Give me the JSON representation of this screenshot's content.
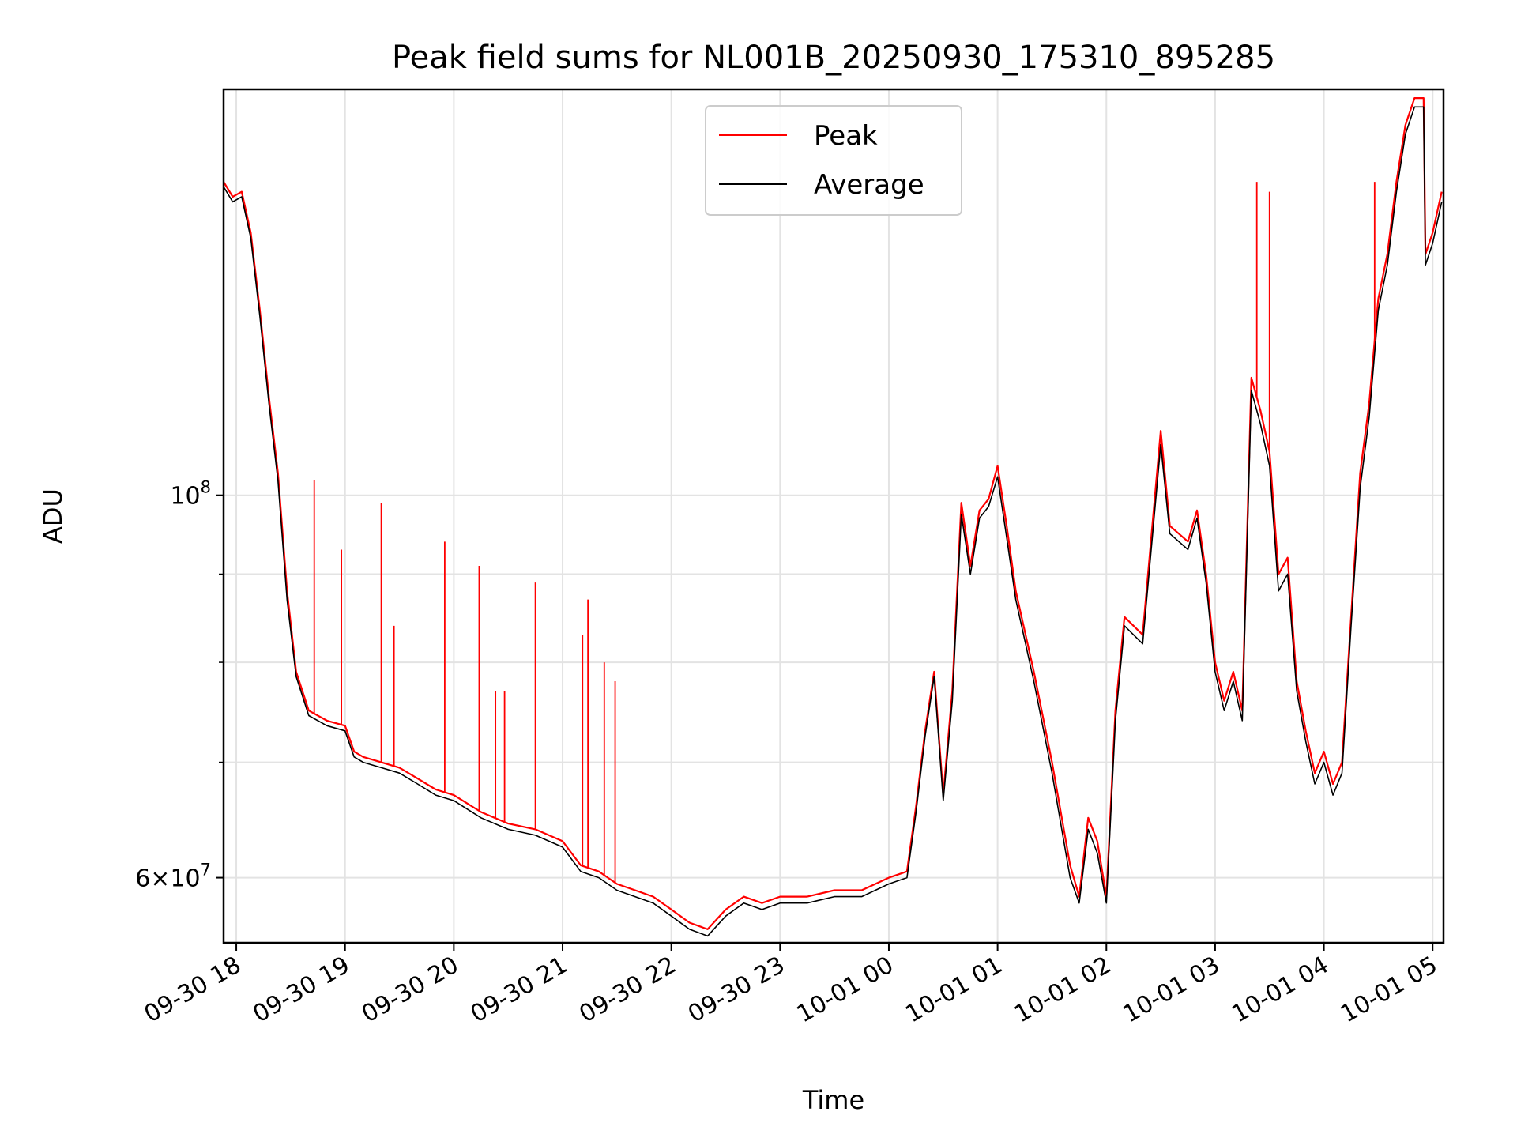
{
  "chart_data": {
    "type": "line",
    "title": "Peak field sums for NL001B_20250930_175310_895285",
    "xlabel": "Time",
    "ylabel": "ADU",
    "y_scale": "log",
    "ylim": [
      55000000,
      172000000
    ],
    "xlim": [
      "2025-09-30 17:53",
      "2025-10-01 05:06"
    ],
    "grid": true,
    "legend_position": "top-center",
    "x_ticks": [
      "09-30 18",
      "09-30 19",
      "09-30 20",
      "09-30 21",
      "09-30 22",
      "09-30 23",
      "10-01 00",
      "10-01 01",
      "10-01 02",
      "10-01 03",
      "10-01 04",
      "10-01 05"
    ],
    "x_tick_times": [
      "2025-09-30 18:00",
      "2025-09-30 19:00",
      "2025-09-30 20:00",
      "2025-09-30 21:00",
      "2025-09-30 22:00",
      "2025-09-30 23:00",
      "2025-10-01 00:00",
      "2025-10-01 01:00",
      "2025-10-01 02:00",
      "2025-10-01 03:00",
      "2025-10-01 04:00",
      "2025-10-01 05:00"
    ],
    "y_ticks": [
      {
        "base": "10",
        "exp": "8",
        "value": 100000000
      },
      {
        "mant": "6",
        "base": "10",
        "exp": "7",
        "value": 60000000
      }
    ],
    "y_minor_ticks": [
      70000000,
      80000000,
      90000000
    ],
    "series": [
      {
        "name": "Peak",
        "color": "#ff0000",
        "x": [
          "2025-09-30 17:53",
          "2025-09-30 17:58",
          "2025-09-30 18:03",
          "2025-09-30 18:08",
          "2025-09-30 18:13",
          "2025-09-30 18:18",
          "2025-09-30 18:23",
          "2025-09-30 18:28",
          "2025-09-30 18:33",
          "2025-09-30 18:40",
          "2025-09-30 18:50",
          "2025-09-30 19:00",
          "2025-09-30 19:05",
          "2025-09-30 19:10",
          "2025-09-30 19:20",
          "2025-09-30 19:30",
          "2025-09-30 19:40",
          "2025-09-30 19:50",
          "2025-09-30 20:00",
          "2025-09-30 20:15",
          "2025-09-30 20:30",
          "2025-09-30 20:45",
          "2025-09-30 21:00",
          "2025-09-30 21:10",
          "2025-09-30 21:20",
          "2025-09-30 21:30",
          "2025-09-30 21:40",
          "2025-09-30 21:50",
          "2025-09-30 22:00",
          "2025-09-30 22:10",
          "2025-09-30 22:20",
          "2025-09-30 22:30",
          "2025-09-30 22:40",
          "2025-09-30 22:50",
          "2025-09-30 23:00",
          "2025-09-30 23:15",
          "2025-09-30 23:30",
          "2025-09-30 23:45",
          "2025-10-01 00:00",
          "2025-10-01 00:10",
          "2025-10-01 00:15",
          "2025-10-01 00:20",
          "2025-10-01 00:25",
          "2025-10-01 00:30",
          "2025-10-01 00:35",
          "2025-10-01 00:40",
          "2025-10-01 00:45",
          "2025-10-01 00:50",
          "2025-10-01 00:55",
          "2025-10-01 01:00",
          "2025-10-01 01:05",
          "2025-10-01 01:10",
          "2025-10-01 01:20",
          "2025-10-01 01:30",
          "2025-10-01 01:40",
          "2025-10-01 01:45",
          "2025-10-01 01:50",
          "2025-10-01 01:55",
          "2025-10-01 02:00",
          "2025-10-01 02:05",
          "2025-10-01 02:10",
          "2025-10-01 02:20",
          "2025-10-01 02:30",
          "2025-10-01 02:35",
          "2025-10-01 02:45",
          "2025-10-01 02:50",
          "2025-10-01 02:55",
          "2025-10-01 03:00",
          "2025-10-01 03:05",
          "2025-10-01 03:10",
          "2025-10-01 03:15",
          "2025-10-01 03:20",
          "2025-10-01 03:25",
          "2025-10-01 03:30",
          "2025-10-01 03:35",
          "2025-10-01 03:40",
          "2025-10-01 03:45",
          "2025-10-01 03:50",
          "2025-10-01 03:55",
          "2025-10-01 04:00",
          "2025-10-01 04:05",
          "2025-10-01 04:10",
          "2025-10-01 04:15",
          "2025-10-01 04:20",
          "2025-10-01 04:25",
          "2025-10-01 04:30",
          "2025-10-01 04:35",
          "2025-10-01 04:40",
          "2025-10-01 04:45",
          "2025-10-01 04:50",
          "2025-10-01 04:55",
          "2025-10-01 04:56",
          "2025-10-01 05:00",
          "2025-10-01 05:05"
        ],
        "y": [
          152000000,
          149000000,
          150000000,
          142000000,
          128000000,
          114000000,
          103000000,
          88000000,
          79000000,
          75000000,
          74000000,
          73500000,
          71000000,
          70500000,
          70000000,
          69500000,
          68500000,
          67500000,
          67000000,
          65500000,
          64500000,
          64000000,
          63000000,
          61000000,
          60500000,
          59500000,
          59000000,
          58500000,
          57500000,
          56500000,
          56000000,
          57500000,
          58500000,
          58000000,
          58500000,
          58500000,
          59000000,
          59000000,
          60000000,
          60500000,
          66000000,
          73000000,
          79000000,
          67000000,
          77000000,
          99000000,
          91000000,
          98000000,
          99500000,
          104000000,
          96000000,
          88000000,
          79000000,
          70000000,
          61000000,
          58500000,
          65000000,
          63000000,
          58500000,
          75000000,
          85000000,
          83000000,
          109000000,
          96000000,
          94000000,
          98000000,
          90000000,
          80000000,
          76000000,
          79000000,
          75000000,
          117000000,
          112000000,
          106000000,
          90000000,
          92000000,
          78000000,
          73000000,
          69000000,
          71000000,
          68000000,
          70000000,
          85000000,
          103000000,
          113000000,
          130000000,
          138000000,
          152000000,
          164000000,
          170000000,
          170000000,
          138000000,
          142000000,
          150000000
        ]
      },
      {
        "name": "Average",
        "color": "#000000",
        "x": [
          "2025-09-30 17:53",
          "2025-09-30 17:58",
          "2025-09-30 18:03",
          "2025-09-30 18:08",
          "2025-09-30 18:13",
          "2025-09-30 18:18",
          "2025-09-30 18:23",
          "2025-09-30 18:28",
          "2025-09-30 18:33",
          "2025-09-30 18:40",
          "2025-09-30 18:50",
          "2025-09-30 19:00",
          "2025-09-30 19:05",
          "2025-09-30 19:10",
          "2025-09-30 19:20",
          "2025-09-30 19:30",
          "2025-09-30 19:40",
          "2025-09-30 19:50",
          "2025-09-30 20:00",
          "2025-09-30 20:15",
          "2025-09-30 20:30",
          "2025-09-30 20:45",
          "2025-09-30 21:00",
          "2025-09-30 21:10",
          "2025-09-30 21:20",
          "2025-09-30 21:30",
          "2025-09-30 21:40",
          "2025-09-30 21:50",
          "2025-09-30 22:00",
          "2025-09-30 22:10",
          "2025-09-30 22:20",
          "2025-09-30 22:30",
          "2025-09-30 22:40",
          "2025-09-30 22:50",
          "2025-09-30 23:00",
          "2025-09-30 23:15",
          "2025-09-30 23:30",
          "2025-09-30 23:45",
          "2025-10-01 00:00",
          "2025-10-01 00:10",
          "2025-10-01 00:15",
          "2025-10-01 00:20",
          "2025-10-01 00:25",
          "2025-10-01 00:30",
          "2025-10-01 00:35",
          "2025-10-01 00:40",
          "2025-10-01 00:45",
          "2025-10-01 00:50",
          "2025-10-01 00:55",
          "2025-10-01 01:00",
          "2025-10-01 01:05",
          "2025-10-01 01:10",
          "2025-10-01 01:20",
          "2025-10-01 01:30",
          "2025-10-01 01:40",
          "2025-10-01 01:45",
          "2025-10-01 01:50",
          "2025-10-01 01:55",
          "2025-10-01 02:00",
          "2025-10-01 02:05",
          "2025-10-01 02:10",
          "2025-10-01 02:20",
          "2025-10-01 02:30",
          "2025-10-01 02:35",
          "2025-10-01 02:45",
          "2025-10-01 02:50",
          "2025-10-01 02:55",
          "2025-10-01 03:00",
          "2025-10-01 03:05",
          "2025-10-01 03:10",
          "2025-10-01 03:15",
          "2025-10-01 03:20",
          "2025-10-01 03:25",
          "2025-10-01 03:30",
          "2025-10-01 03:35",
          "2025-10-01 03:40",
          "2025-10-01 03:45",
          "2025-10-01 03:50",
          "2025-10-01 03:55",
          "2025-10-01 04:00",
          "2025-10-01 04:05",
          "2025-10-01 04:10",
          "2025-10-01 04:15",
          "2025-10-01 04:20",
          "2025-10-01 04:25",
          "2025-10-01 04:30",
          "2025-10-01 04:35",
          "2025-10-01 04:40",
          "2025-10-01 04:45",
          "2025-10-01 04:50",
          "2025-10-01 04:55",
          "2025-10-01 04:56",
          "2025-10-01 05:00",
          "2025-10-01 05:05"
        ],
        "y": [
          151000000,
          148000000,
          149000000,
          141000000,
          127000000,
          113000000,
          102000000,
          87000000,
          78500000,
          74500000,
          73500000,
          73000000,
          70500000,
          70000000,
          69500000,
          69000000,
          68000000,
          67000000,
          66500000,
          65000000,
          64000000,
          63500000,
          62500000,
          60500000,
          60000000,
          59000000,
          58500000,
          58000000,
          57000000,
          56000000,
          55500000,
          57000000,
          58000000,
          57500000,
          58000000,
          58000000,
          58500000,
          58500000,
          59500000,
          60000000,
          65500000,
          72500000,
          78500000,
          66500000,
          76000000,
          97500000,
          90000000,
          97000000,
          98500000,
          102500000,
          94500000,
          87000000,
          78000000,
          69000000,
          60000000,
          58000000,
          64000000,
          62000000,
          58000000,
          74000000,
          84000000,
          82000000,
          107000000,
          95000000,
          93000000,
          97000000,
          89000000,
          79000000,
          75000000,
          78000000,
          74000000,
          115000000,
          110000000,
          104000000,
          88000000,
          90000000,
          77000000,
          72000000,
          68000000,
          70000000,
          67000000,
          69000000,
          84000000,
          101000000,
          111000000,
          128000000,
          136000000,
          150000000,
          162000000,
          168000000,
          168000000,
          136000000,
          140000000,
          148000000
        ]
      }
    ],
    "spikes": {
      "series": "Peak",
      "x": [
        "2025-09-30 18:43",
        "2025-09-30 18:58",
        "2025-09-30 19:20",
        "2025-09-30 19:27",
        "2025-09-30 19:55",
        "2025-09-30 20:14",
        "2025-09-30 20:23",
        "2025-09-30 20:28",
        "2025-09-30 20:45",
        "2025-09-30 21:11",
        "2025-09-30 21:14",
        "2025-09-30 21:23",
        "2025-09-30 21:29",
        "2025-10-01 03:23",
        "2025-10-01 03:30",
        "2025-10-01 04:28"
      ],
      "y": [
        102000000,
        93000000,
        99000000,
        84000000,
        94000000,
        91000000,
        77000000,
        77000000,
        89000000,
        83000000,
        87000000,
        80000000,
        78000000,
        152000000,
        150000000,
        152000000
      ]
    }
  }
}
